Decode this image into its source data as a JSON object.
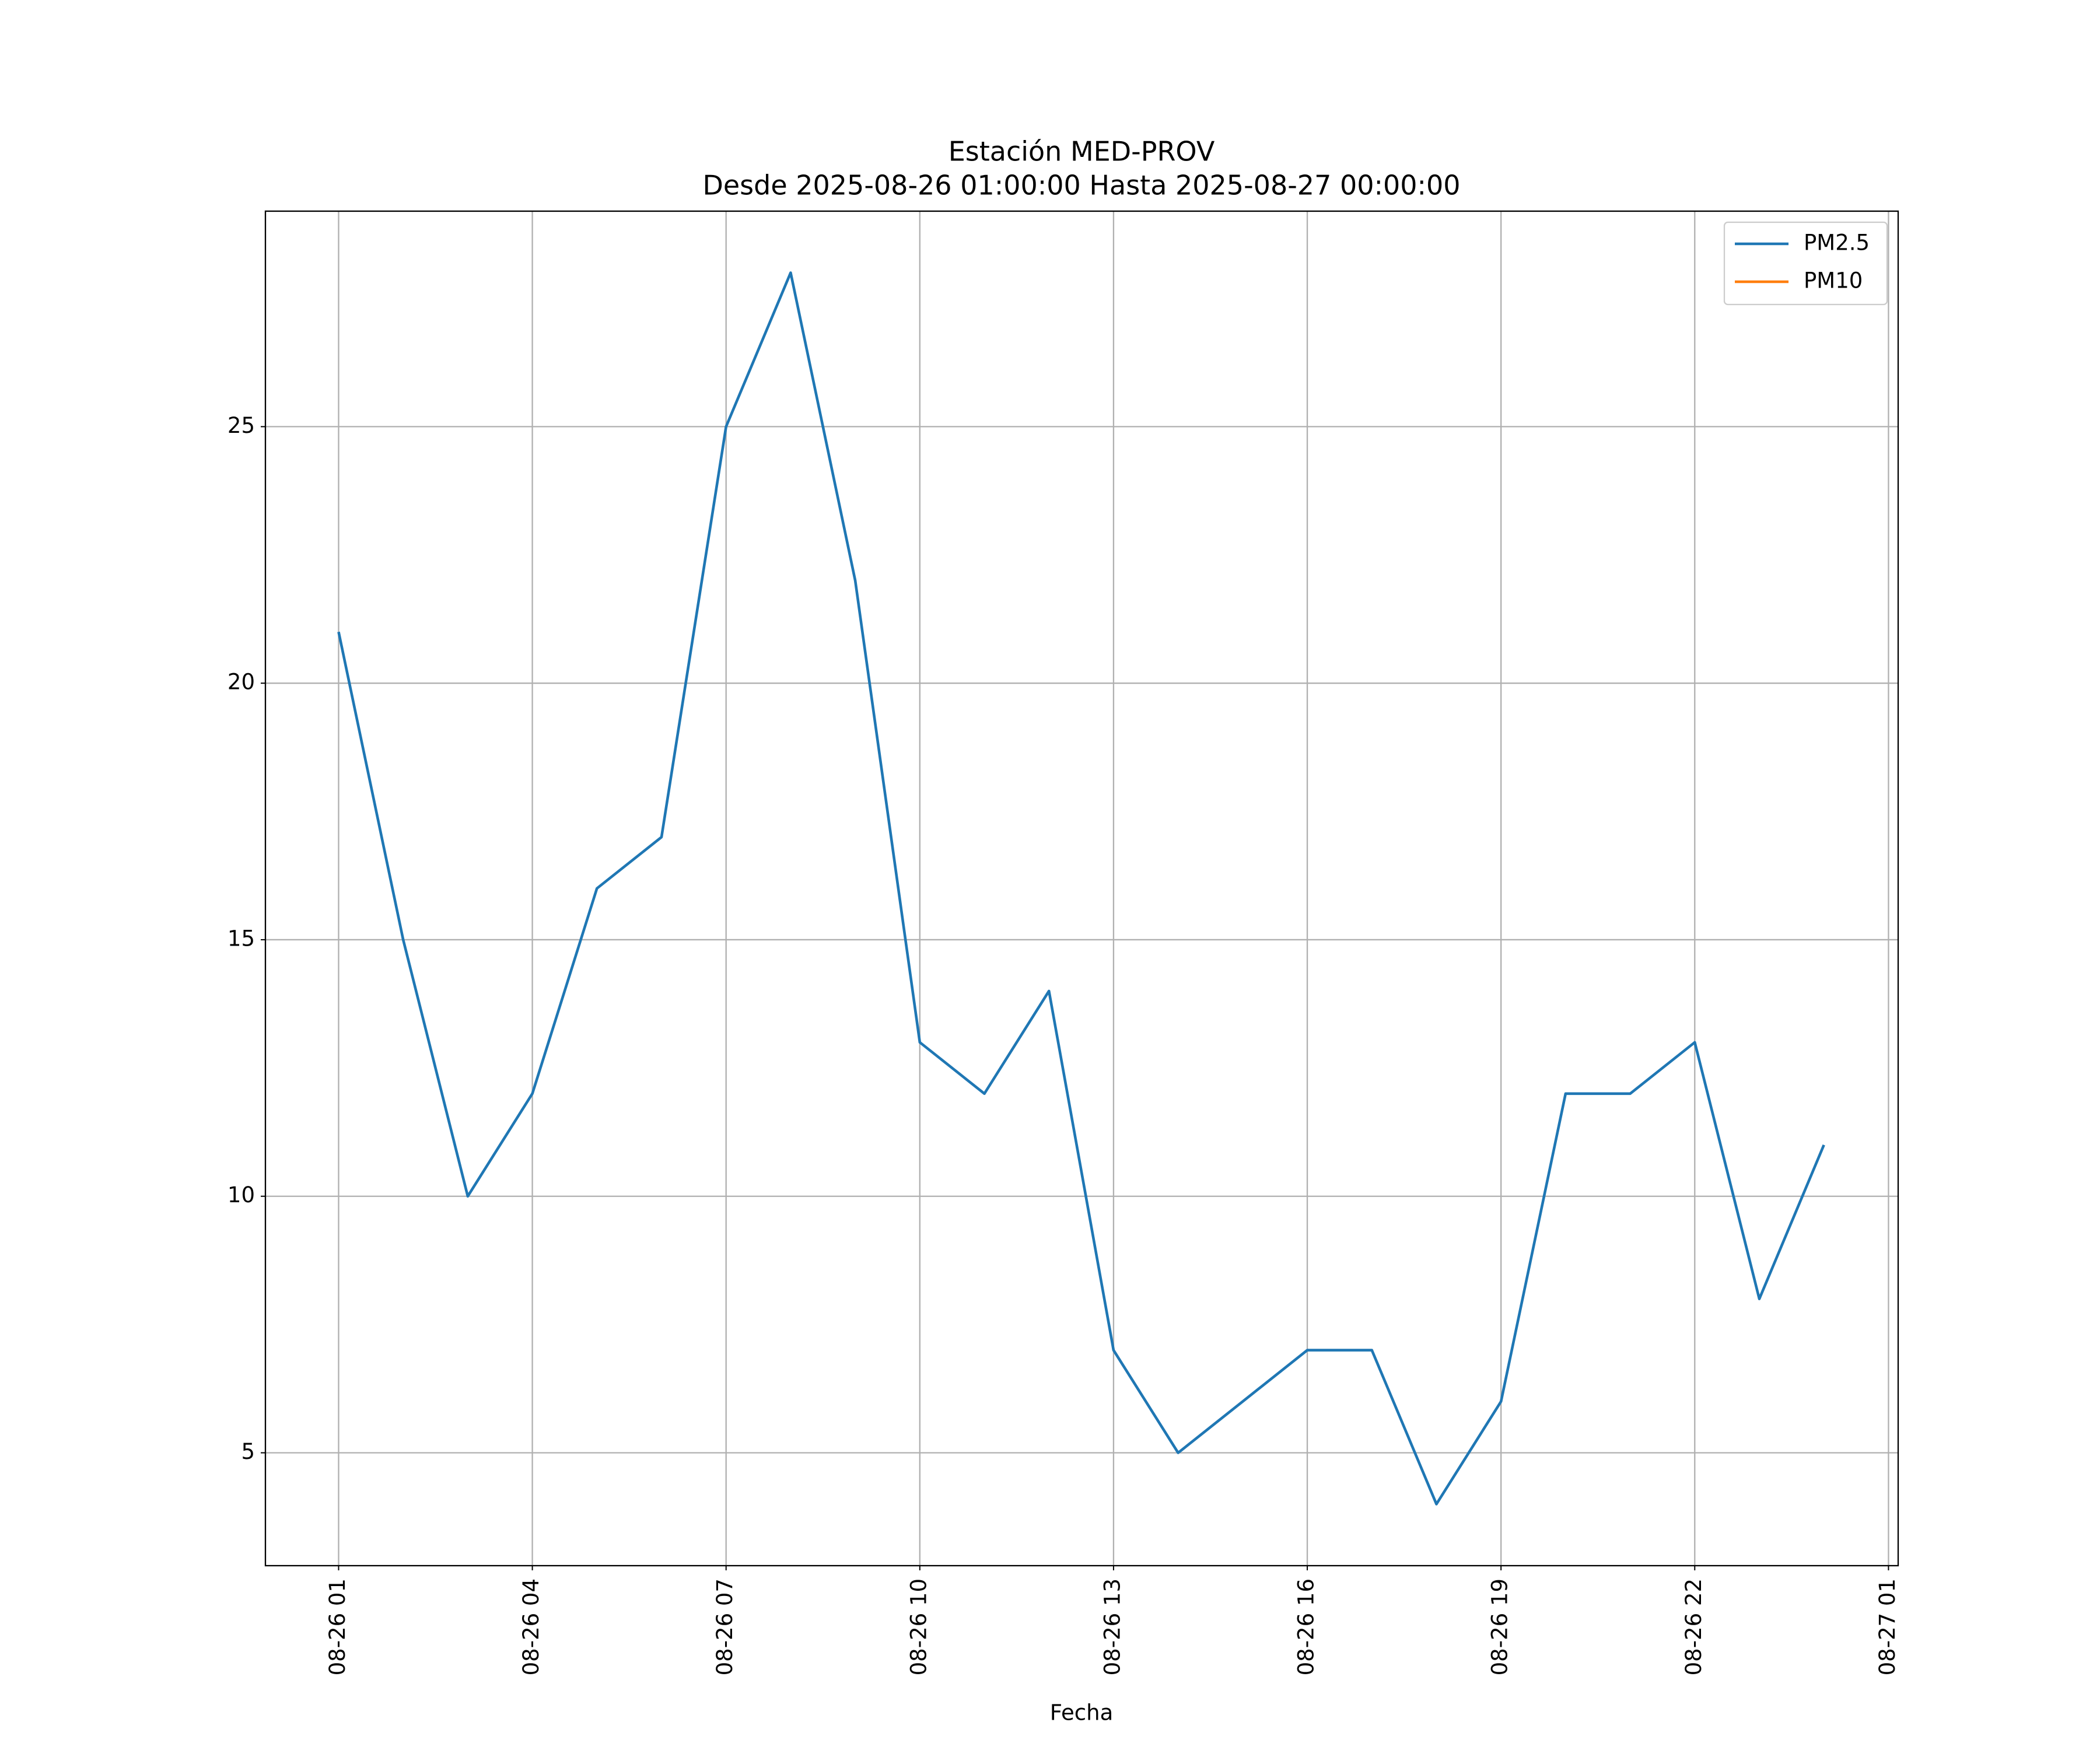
{
  "chart_data": {
    "type": "line",
    "title": "Estación MED-PROV",
    "subtitle": "Desde 2025-08-26 01:00:00 Hasta 2025-08-27 00:00:00",
    "xlabel": "Fecha",
    "x": [
      "08-26 01",
      "08-26 02",
      "08-26 03",
      "08-26 04",
      "08-26 05",
      "08-26 06",
      "08-26 07",
      "08-26 08",
      "08-26 09",
      "08-26 10",
      "08-26 11",
      "08-26 12",
      "08-26 13",
      "08-26 14",
      "08-26 15",
      "08-26 16",
      "08-26 17",
      "08-26 18",
      "08-26 19",
      "08-26 20",
      "08-26 21",
      "08-26 22",
      "08-26 23",
      "08-27 00"
    ],
    "series": [
      {
        "name": "PM2.5",
        "color": "#1f77b4",
        "values": [
          21,
          15,
          10,
          12,
          16,
          17,
          25,
          28,
          22,
          13,
          12,
          14,
          7,
          5,
          6,
          7,
          7,
          4,
          6,
          12,
          12,
          13,
          8,
          11
        ]
      },
      {
        "name": "PM10",
        "color": "#ff7f0e",
        "values": [
          null,
          null,
          null,
          null,
          null,
          null,
          null,
          null,
          null,
          null,
          null,
          null,
          null,
          null,
          null,
          null,
          null,
          null,
          null,
          null,
          null,
          null,
          null,
          null
        ]
      }
    ],
    "xlim": [
      "08-25 23:52",
      "08-27 01:09"
    ],
    "xticks": [
      "08-26 01",
      "08-26 04",
      "08-26 07",
      "08-26 10",
      "08-26 13",
      "08-26 16",
      "08-26 19",
      "08-26 22",
      "08-27 01"
    ],
    "ylim": [
      2.8,
      29.2
    ],
    "yticks": [
      5,
      10,
      15,
      20,
      25
    ],
    "grid": true,
    "legend": "upper right"
  }
}
